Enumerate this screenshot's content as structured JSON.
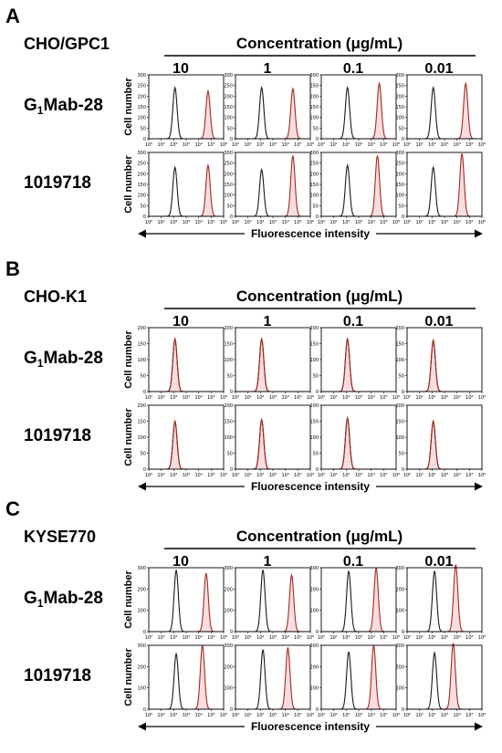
{
  "chart_data": {
    "type": "line",
    "title": "",
    "xlabel": "Fluorescence intensity",
    "ylabel": "Cell number",
    "x_scale": "log",
    "xlim": [
      1,
      1000000
    ],
    "x_tick_labels": [
      "10⁰",
      "10¹",
      "10²",
      "10³",
      "10⁴",
      "10⁵",
      "10⁶"
    ],
    "concentration_label": "Concentration (μg/mL)",
    "concentrations": [
      "10",
      "1",
      "0.1",
      "0.01"
    ],
    "colors": {
      "control": "#1a1a1a",
      "antibody": "#a32a1e",
      "fill": "#f6d9df"
    },
    "panels": [
      {
        "letter": "A",
        "cell_line": "CHO/GPC1",
        "ylim": [
          0,
          300
        ],
        "y_ticks": [
          "0",
          "50",
          "100",
          "150",
          "200",
          "250",
          "300"
        ],
        "rows": [
          {
            "antibody": "G1Mab-28",
            "label_main": "G",
            "label_sub": "1",
            "label_rest": "Mab-28",
            "plots": [
              {
                "control_peak": {
                  "log_x": 2.1,
                  "height": 240
                },
                "antibody_peak": {
                  "log_x": 4.75,
                  "height": 225
                }
              },
              {
                "control_peak": {
                  "log_x": 2.1,
                  "height": 240
                },
                "antibody_peak": {
                  "log_x": 4.6,
                  "height": 235
                }
              },
              {
                "control_peak": {
                  "log_x": 2.1,
                  "height": 240
                },
                "antibody_peak": {
                  "log_x": 4.65,
                  "height": 260
                }
              },
              {
                "control_peak": {
                  "log_x": 2.1,
                  "height": 240
                },
                "antibody_peak": {
                  "log_x": 4.7,
                  "height": 260
                }
              }
            ]
          },
          {
            "antibody": "1019718",
            "label_main": "1019718",
            "label_sub": "",
            "label_rest": "",
            "plots": [
              {
                "control_peak": {
                  "log_x": 2.1,
                  "height": 230
                },
                "antibody_peak": {
                  "log_x": 4.75,
                  "height": 240
                }
              },
              {
                "control_peak": {
                  "log_x": 2.1,
                  "height": 220
                },
                "antibody_peak": {
                  "log_x": 4.6,
                  "height": 285
                }
              },
              {
                "control_peak": {
                  "log_x": 2.1,
                  "height": 240
                },
                "antibody_peak": {
                  "log_x": 4.5,
                  "height": 285
                }
              },
              {
                "control_peak": {
                  "log_x": 2.1,
                  "height": 230
                },
                "antibody_peak": {
                  "log_x": 4.4,
                  "height": 295
                }
              }
            ]
          }
        ]
      },
      {
        "letter": "B",
        "cell_line": "CHO-K1",
        "ylim": [
          0,
          200
        ],
        "y_ticks": [
          "0",
          "50",
          "100",
          "150",
          "200"
        ],
        "rows": [
          {
            "antibody": "G1Mab-28",
            "label_main": "G",
            "label_sub": "1",
            "label_rest": "Mab-28",
            "plots": [
              {
                "control_peak": {
                  "log_x": 2.1,
                  "height": 165
                },
                "antibody_peak": {
                  "log_x": 2.1,
                  "height": 165
                }
              },
              {
                "control_peak": {
                  "log_x": 2.1,
                  "height": 165
                },
                "antibody_peak": {
                  "log_x": 2.1,
                  "height": 165
                }
              },
              {
                "control_peak": {
                  "log_x": 2.1,
                  "height": 165
                },
                "antibody_peak": {
                  "log_x": 2.1,
                  "height": 165
                }
              },
              {
                "control_peak": {
                  "log_x": 2.1,
                  "height": 160
                },
                "antibody_peak": {
                  "log_x": 2.1,
                  "height": 160
                }
              }
            ]
          },
          {
            "antibody": "1019718",
            "label_main": "1019718",
            "label_sub": "",
            "label_rest": "",
            "plots": [
              {
                "control_peak": {
                  "log_x": 2.1,
                  "height": 150
                },
                "antibody_peak": {
                  "log_x": 2.1,
                  "height": 150
                }
              },
              {
                "control_peak": {
                  "log_x": 2.1,
                  "height": 155
                },
                "antibody_peak": {
                  "log_x": 2.1,
                  "height": 155
                }
              },
              {
                "control_peak": {
                  "log_x": 2.1,
                  "height": 160
                },
                "antibody_peak": {
                  "log_x": 2.1,
                  "height": 160
                }
              },
              {
                "control_peak": {
                  "log_x": 2.1,
                  "height": 150
                },
                "antibody_peak": {
                  "log_x": 2.1,
                  "height": 150
                }
              }
            ]
          }
        ]
      },
      {
        "letter": "C",
        "cell_line": "KYSE770",
        "ylim": [
          0,
          300
        ],
        "y_ticks": [
          "0",
          "100",
          "200",
          "300"
        ],
        "rows": [
          {
            "antibody": "G1Mab-28",
            "label_main": "G",
            "label_sub": "1",
            "label_rest": "Mab-28",
            "plots": [
              {
                "control_peak": {
                  "log_x": 2.2,
                  "height": 290
                },
                "antibody_peak": {
                  "log_x": 4.6,
                  "height": 275
                }
              },
              {
                "control_peak": {
                  "log_x": 2.2,
                  "height": 290
                },
                "antibody_peak": {
                  "log_x": 4.5,
                  "height": 265
                }
              },
              {
                "control_peak": {
                  "log_x": 2.2,
                  "height": 285
                },
                "antibody_peak": {
                  "log_x": 4.4,
                  "height": 300
                }
              },
              {
                "control_peak": {
                  "log_x": 2.2,
                  "height": 285
                },
                "antibody_peak": {
                  "log_x": 3.9,
                  "height": 315
                }
              }
            ]
          },
          {
            "antibody": "1019718",
            "label_main": "1019718",
            "label_sub": "",
            "label_rest": "",
            "plots": [
              {
                "control_peak": {
                  "log_x": 2.2,
                  "height": 260
                },
                "antibody_peak": {
                  "log_x": 4.3,
                  "height": 300
                }
              },
              {
                "control_peak": {
                  "log_x": 2.2,
                  "height": 280
                },
                "antibody_peak": {
                  "log_x": 4.2,
                  "height": 290
                }
              },
              {
                "control_peak": {
                  "log_x": 2.2,
                  "height": 270
                },
                "antibody_peak": {
                  "log_x": 4.2,
                  "height": 300
                }
              },
              {
                "control_peak": {
                  "log_x": 2.2,
                  "height": 265
                },
                "antibody_peak": {
                  "log_x": 3.7,
                  "height": 310
                }
              }
            ]
          }
        ]
      }
    ]
  }
}
